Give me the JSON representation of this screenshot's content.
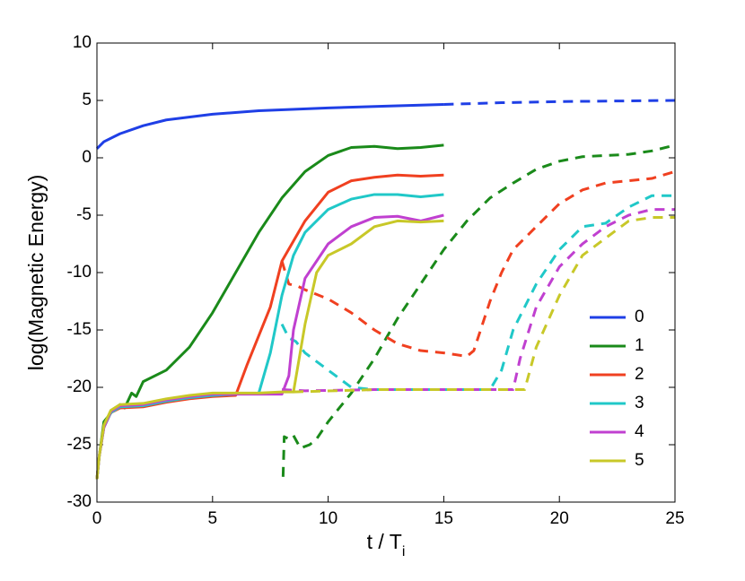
{
  "chart_data": {
    "type": "line",
    "xlabel": "t / T",
    "xlabel_sub": "i",
    "ylabel": "log(Magnetic Energy)",
    "xlim": [
      0,
      25
    ],
    "ylim": [
      -30,
      10
    ],
    "xticks": [
      0,
      5,
      10,
      15,
      20,
      25
    ],
    "yticks": [
      -30,
      -25,
      -20,
      -15,
      -10,
      -5,
      0,
      5,
      10
    ],
    "legend": "right",
    "series": [
      {
        "name": "0",
        "color": "#1f3fe6",
        "dashed": false,
        "x": [
          0,
          0.3,
          1,
          2,
          3,
          5,
          7,
          10,
          12.5,
          15
        ],
        "values": [
          0.8,
          1.4,
          2.1,
          2.8,
          3.3,
          3.8,
          4.1,
          4.35,
          4.5,
          4.65
        ]
      },
      {
        "name": "1",
        "color": "#1a8a1a",
        "dashed": false,
        "x": [
          0,
          0.1,
          0.3,
          0.7,
          1,
          1.2,
          1.5,
          1.7,
          2,
          3,
          4,
          5,
          6,
          7,
          8,
          9,
          10,
          11,
          12,
          13,
          14,
          15
        ],
        "values": [
          -28,
          -26,
          -23,
          -22,
          -21.5,
          -21.8,
          -20.5,
          -20.8,
          -19.5,
          -18.5,
          -16.5,
          -13.5,
          -10,
          -6.5,
          -3.5,
          -1.2,
          0.2,
          0.9,
          1.0,
          0.8,
          0.9,
          1.1
        ]
      },
      {
        "name": "2",
        "color": "#f04020",
        "dashed": false,
        "x": [
          0,
          0.1,
          0.3,
          0.6,
          1,
          2,
          3,
          4,
          5,
          6,
          6.5,
          7.5,
          8,
          9,
          10,
          11,
          12,
          13,
          14,
          15
        ],
        "values": [
          -28,
          -26,
          -23.5,
          -22.2,
          -21.8,
          -21.7,
          -21.3,
          -21,
          -20.8,
          -20.7,
          -18,
          -13,
          -9,
          -5.5,
          -3,
          -2,
          -1.7,
          -1.5,
          -1.6,
          -1.5
        ]
      },
      {
        "name": "3",
        "color": "#20c8c8",
        "dashed": false,
        "x": [
          0,
          0.1,
          0.3,
          0.6,
          1,
          2,
          3,
          4,
          5,
          6,
          7,
          7.5,
          8,
          8.5,
          9,
          10,
          11,
          12,
          13,
          14,
          15
        ],
        "values": [
          -28,
          -26,
          -23.5,
          -22.2,
          -21.7,
          -21.6,
          -21.2,
          -20.9,
          -20.7,
          -20.6,
          -20.5,
          -17,
          -12,
          -8.5,
          -6.5,
          -4.5,
          -3.6,
          -3.2,
          -3.2,
          -3.4,
          -3.2
        ]
      },
      {
        "name": "4",
        "color": "#c040d0",
        "dashed": false,
        "x": [
          0,
          0.1,
          0.3,
          0.6,
          1,
          2,
          3,
          4,
          5,
          6,
          7,
          8,
          8.3,
          8.5,
          9,
          10,
          11,
          12,
          13,
          14,
          15
        ],
        "values": [
          -28,
          -26,
          -23.5,
          -22.1,
          -21.6,
          -21.5,
          -21.1,
          -20.8,
          -20.6,
          -20.6,
          -20.6,
          -20.6,
          -19,
          -15,
          -10.5,
          -7.5,
          -6,
          -5.2,
          -5.1,
          -5.5,
          -5
        ]
      },
      {
        "name": "5",
        "color": "#c8c828",
        "dashed": false,
        "x": [
          0,
          0.1,
          0.3,
          0.6,
          1,
          2,
          3,
          4,
          5,
          6,
          7,
          8,
          8.5,
          9,
          9.5,
          10,
          11,
          12,
          13,
          14,
          15
        ],
        "values": [
          -28,
          -26,
          -23.3,
          -22,
          -21.5,
          -21.4,
          -21,
          -20.7,
          -20.5,
          -20.5,
          -20.5,
          -20.4,
          -20.4,
          -14.5,
          -10,
          -8.5,
          -7.5,
          -6,
          -5.5,
          -5.6,
          -5.5
        ]
      },
      {
        "color": "#1f3fe6",
        "dashed": true,
        "x": [
          15,
          17.5,
          20,
          25
        ],
        "values": [
          4.65,
          4.8,
          4.9,
          5.0
        ]
      },
      {
        "color": "#1a8a1a",
        "dashed": true,
        "x": [
          8.05,
          8.1,
          8.3,
          8.5,
          8.8,
          9.2,
          9.5,
          10,
          11,
          12,
          13,
          14,
          15,
          16,
          17,
          18,
          19,
          20,
          21,
          22,
          23,
          24,
          25
        ],
        "values": [
          -27.8,
          -24.3,
          -24.5,
          -24.2,
          -25.3,
          -25,
          -24.5,
          -23,
          -20.5,
          -17.5,
          -14,
          -11,
          -8,
          -5.5,
          -3.5,
          -2.2,
          -1,
          -0.3,
          0.1,
          0.2,
          0.3,
          0.6,
          1.1
        ]
      },
      {
        "color": "#f04020",
        "dashed": true,
        "x": [
          8,
          8.3,
          8.7,
          9,
          10,
          11,
          12,
          13,
          14,
          15,
          16,
          16.3,
          17,
          17.5,
          18,
          19,
          20,
          21,
          22,
          23,
          24,
          25
        ],
        "values": [
          -9,
          -11,
          -11.2,
          -11.5,
          -12.3,
          -13.5,
          -15,
          -16.2,
          -16.8,
          -17,
          -17.3,
          -16.8,
          -12.5,
          -10,
          -8,
          -6,
          -4,
          -2.8,
          -2.2,
          -2,
          -1.8,
          -1.2
        ]
      },
      {
        "color": "#20c8c8",
        "dashed": true,
        "x": [
          8,
          8.3,
          8.6,
          9,
          10,
          11,
          12,
          15,
          17,
          17.5,
          18,
          19,
          20,
          21,
          22,
          23,
          24,
          25
        ],
        "values": [
          -14.5,
          -15.7,
          -16,
          -17,
          -18.5,
          -20,
          -20.2,
          -20.2,
          -20.2,
          -18.5,
          -15,
          -11,
          -8,
          -6,
          -5.7,
          -4.3,
          -3.3,
          -3.3
        ]
      },
      {
        "color": "#c040d0",
        "dashed": true,
        "x": [
          8,
          9,
          12,
          17,
          18,
          18.3,
          19,
          20,
          21,
          22,
          23,
          24,
          25
        ],
        "values": [
          -20.2,
          -20.3,
          -20.2,
          -20.2,
          -20.2,
          -17.5,
          -13,
          -9.5,
          -7.5,
          -6,
          -5,
          -4.5,
          -4.5
        ]
      },
      {
        "color": "#c8c828",
        "dashed": true,
        "x": [
          8.5,
          12,
          18.5,
          19,
          20,
          21,
          22,
          23,
          24,
          25
        ],
        "values": [
          -20.4,
          -20.2,
          -20.2,
          -16.5,
          -12,
          -8.5,
          -7,
          -5.5,
          -5.2,
          -5.2
        ]
      }
    ]
  }
}
